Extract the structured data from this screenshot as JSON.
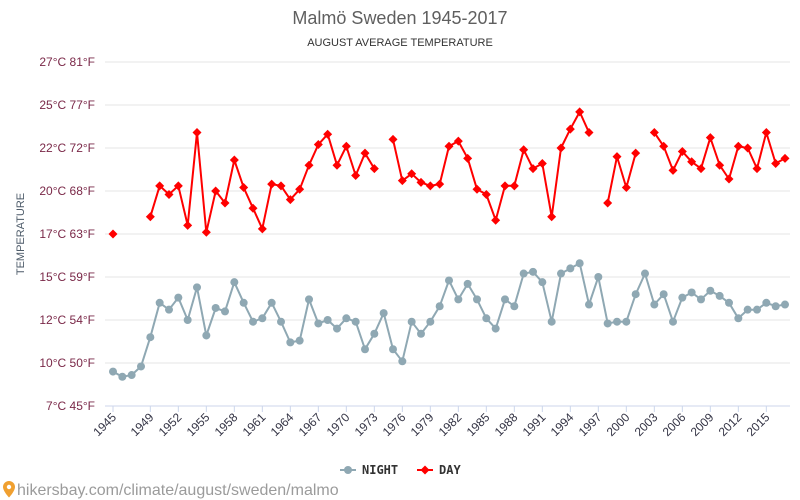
{
  "chart_data": {
    "type": "line",
    "title": "Malmö Sweden 1945-2017",
    "subtitle": "AUGUST AVERAGE TEMPERATURE",
    "xlabel": "",
    "ylabel": "TEMPERATURE",
    "ylim": [
      7.5,
      27.5
    ],
    "grid": true,
    "legend": "bottom-center",
    "y_ticks": [
      {
        "value": 7.5,
        "label": "7°C 45°F"
      },
      {
        "value": 10,
        "label": "10°C 50°F"
      },
      {
        "value": 12.5,
        "label": "12°C 54°F"
      },
      {
        "value": 15,
        "label": "15°C 59°F"
      },
      {
        "value": 17.5,
        "label": "17°C 63°F"
      },
      {
        "value": 20,
        "label": "20°C 68°F"
      },
      {
        "value": 22.5,
        "label": "22°C 72°F"
      },
      {
        "value": 25,
        "label": "25°C 77°F"
      },
      {
        "value": 27.5,
        "label": "27°C 81°F"
      }
    ],
    "x": [
      1945,
      1946,
      1947,
      1948,
      1949,
      1950,
      1951,
      1952,
      1953,
      1954,
      1955,
      1956,
      1957,
      1958,
      1959,
      1960,
      1961,
      1962,
      1963,
      1964,
      1965,
      1966,
      1967,
      1968,
      1969,
      1970,
      1971,
      1972,
      1973,
      1974,
      1975,
      1976,
      1977,
      1978,
      1979,
      1980,
      1981,
      1982,
      1983,
      1984,
      1985,
      1986,
      1987,
      1988,
      1989,
      1990,
      1991,
      1992,
      1993,
      1994,
      1995,
      1996,
      1997,
      1998,
      1999,
      2000,
      2001,
      2002,
      2003,
      2004,
      2005,
      2006,
      2007,
      2008,
      2009,
      2010,
      2011,
      2012,
      2013,
      2014,
      2015,
      2016,
      2017
    ],
    "x_tick_labels": [
      "1945",
      "1949",
      "1952",
      "1955",
      "1958",
      "1961",
      "1964",
      "1967",
      "1970",
      "1973",
      "1976",
      "1979",
      "1982",
      "1985",
      "1988",
      "1991",
      "1994",
      "1997",
      "2000",
      "2003",
      "2006",
      "2009",
      "2012",
      "2015"
    ],
    "series": [
      {
        "name": "NIGHT",
        "color": "#8fa8b3",
        "marker": "circle",
        "values": [
          9.5,
          9.2,
          9.3,
          9.8,
          11.5,
          13.5,
          13.1,
          13.8,
          12.5,
          14.4,
          11.6,
          13.2,
          13.0,
          14.7,
          13.5,
          12.4,
          12.6,
          13.5,
          12.4,
          11.2,
          11.3,
          13.7,
          12.3,
          12.5,
          12.0,
          12.6,
          12.4,
          10.8,
          11.7,
          12.9,
          10.8,
          10.1,
          12.4,
          11.7,
          12.4,
          13.3,
          14.8,
          13.7,
          14.6,
          13.7,
          12.6,
          12.0,
          13.7,
          13.3,
          15.2,
          15.3,
          14.7,
          12.4,
          15.2,
          15.5,
          15.8,
          13.4,
          15.0,
          12.3,
          12.4,
          12.4,
          14.0,
          15.2,
          13.4,
          14.0,
          12.4,
          13.8,
          14.1,
          13.7,
          14.2,
          13.9,
          13.5,
          12.6,
          13.1,
          13.1,
          13.5,
          13.3,
          13.4
        ]
      },
      {
        "name": "DAY",
        "color": "#ff0000",
        "marker": "diamond",
        "values": [
          17.5,
          null,
          null,
          null,
          18.5,
          20.3,
          19.8,
          20.3,
          18.0,
          23.4,
          17.6,
          20.0,
          19.3,
          21.8,
          20.2,
          19.0,
          17.8,
          20.4,
          20.3,
          19.5,
          20.1,
          21.5,
          22.7,
          23.3,
          21.5,
          22.6,
          20.9,
          22.2,
          21.3,
          null,
          23.0,
          20.6,
          21.0,
          20.5,
          20.3,
          20.4,
          22.6,
          22.9,
          21.9,
          20.1,
          19.8,
          18.3,
          20.3,
          20.3,
          22.4,
          21.3,
          21.6,
          18.5,
          22.5,
          23.6,
          24.6,
          23.4,
          null,
          19.3,
          22.0,
          20.2,
          22.2,
          null,
          23.4,
          22.6,
          21.2,
          22.3,
          21.7,
          21.3,
          23.1,
          21.5,
          20.7,
          22.6,
          22.5,
          21.3,
          23.4,
          21.6,
          21.9
        ]
      }
    ]
  },
  "footer": {
    "text": "hikersbay.com/climate/august/sweden/malmo",
    "icon": "location-pin-icon",
    "icon_color": "#f0a030"
  }
}
